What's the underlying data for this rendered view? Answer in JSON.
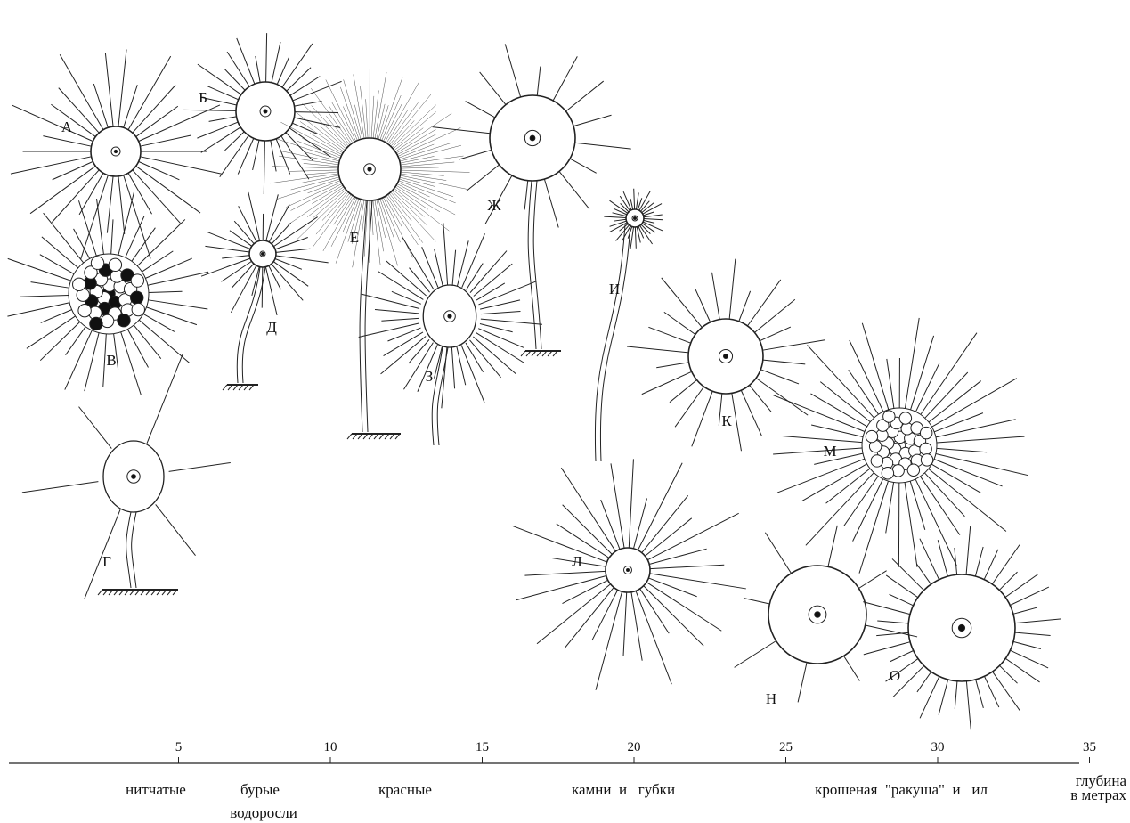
{
  "labels": [
    "А",
    "Б",
    "В",
    "Г",
    "Д",
    "Е",
    "Ж",
    "З",
    "И",
    "К",
    "Л",
    "М",
    "Н",
    "О"
  ],
  "axis": {
    "ticks": [
      5,
      10,
      15,
      20,
      25,
      30,
      35
    ],
    "title": [
      "глубина",
      "в метрах"
    ]
  },
  "substrates": [
    "нитчатые",
    "бурые",
    "водоросли",
    "красные",
    "камни  и   губки",
    "крошеная  \"ракуша\"  и   ил"
  ]
}
